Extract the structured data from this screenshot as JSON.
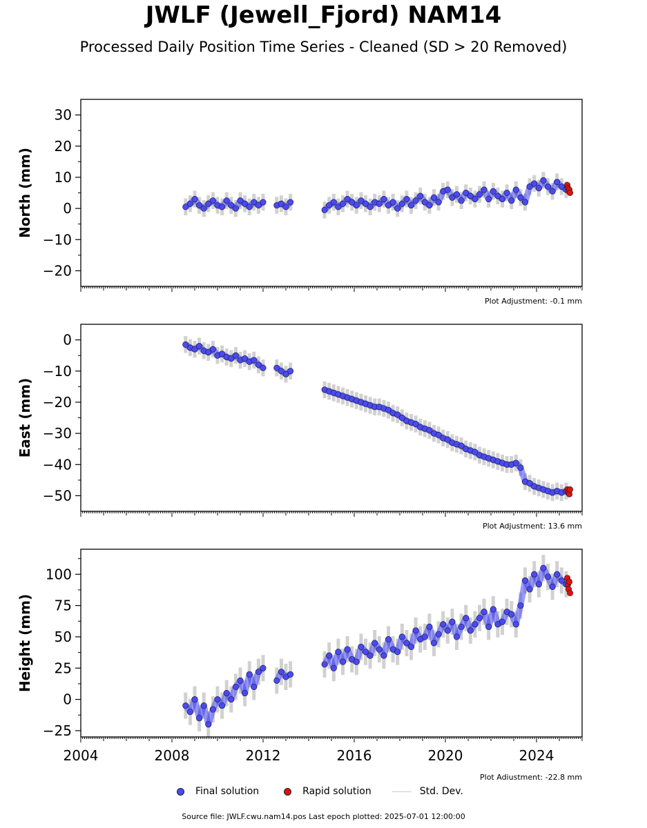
{
  "title": "JWLF (Jewell_Fjord) NAM14",
  "subtitle": "Processed Daily Position Time Series - Cleaned (SD > 20 Removed)",
  "legend": {
    "final": "Final solution",
    "rapid": "Rapid solution",
    "std": "Std. Dev."
  },
  "footer": "Source file: JWLF.cwu.nam14.pos  Last epoch plotted: 2025-07-01 12:00:00",
  "colors": {
    "final": "#4a4af5",
    "rapid": "#e01010",
    "std": "#999999",
    "edge": "#1a1a1a"
  },
  "chart_data": [
    {
      "type": "scatter",
      "ylabel": "North (mm)",
      "xlim": [
        2004,
        2026
      ],
      "ylim": [
        -25,
        35
      ],
      "yticks": [
        -20,
        -10,
        0,
        10,
        20,
        30
      ],
      "ytick_labels": [
        "−20",
        "−10",
        "0",
        "10",
        "20",
        "30"
      ],
      "xticks": [
        2004,
        2008,
        2012,
        2016,
        2020,
        2024
      ],
      "xtick_labels": [],
      "adjustment": "Plot Adjustment: -0.1 mm",
      "series": [
        {
          "role": "final",
          "x": [
            2008.6,
            2008.8,
            2009.0,
            2009.2,
            2009.4,
            2009.6,
            2009.8,
            2010.0,
            2010.2,
            2010.4,
            2010.6,
            2010.8,
            2011.0,
            2011.2,
            2011.4,
            2011.6,
            2011.8,
            2012.0,
            2012.6,
            2012.8,
            2013.0,
            2013.2,
            2014.7,
            2014.9,
            2015.1,
            2015.3,
            2015.5,
            2015.7,
            2015.9,
            2016.1,
            2016.3,
            2016.5,
            2016.7,
            2016.9,
            2017.1,
            2017.3,
            2017.5,
            2017.7,
            2017.9,
            2018.1,
            2018.3,
            2018.5,
            2018.7,
            2018.9,
            2019.1,
            2019.3,
            2019.5,
            2019.7,
            2019.9,
            2020.1,
            2020.3,
            2020.5,
            2020.7,
            2020.9,
            2021.1,
            2021.3,
            2021.5,
            2021.7,
            2021.9,
            2022.1,
            2022.3,
            2022.5,
            2022.7,
            2022.9,
            2023.1,
            2023.3,
            2023.5,
            2023.7,
            2023.9,
            2024.1,
            2024.3,
            2024.5,
            2024.7,
            2024.9,
            2025.1,
            2025.3
          ],
          "y": [
            0.5,
            1.5,
            3.0,
            1.0,
            0.0,
            1.5,
            2.5,
            1.0,
            0.5,
            2.5,
            1.0,
            0.0,
            2.5,
            1.5,
            0.5,
            2.0,
            1.0,
            2.0,
            1.0,
            1.5,
            0.5,
            2.0,
            -0.5,
            1.0,
            2.0,
            0.5,
            1.5,
            3.0,
            2.0,
            1.0,
            2.5,
            1.5,
            0.5,
            2.0,
            1.5,
            3.0,
            1.0,
            2.0,
            0.0,
            1.5,
            3.0,
            1.0,
            2.5,
            4.0,
            2.0,
            1.0,
            3.5,
            2.0,
            5.5,
            6.0,
            3.5,
            4.5,
            2.5,
            5.0,
            4.0,
            3.0,
            4.5,
            6.0,
            3.0,
            5.5,
            4.0,
            3.0,
            5.0,
            2.5,
            6.0,
            3.5,
            2.0,
            7.0,
            8.0,
            6.5,
            9.0,
            7.0,
            5.5,
            8.5,
            7.0,
            6.0
          ]
        },
        {
          "role": "rapid",
          "x": [
            2025.35,
            2025.38,
            2025.41,
            2025.44,
            2025.47
          ],
          "y": [
            7.5,
            6.5,
            5.5,
            6.0,
            5.0
          ]
        }
      ]
    },
    {
      "type": "scatter",
      "ylabel": "East (mm)",
      "xlim": [
        2004,
        2026
      ],
      "ylim": [
        -55,
        5
      ],
      "yticks": [
        -50,
        -40,
        -30,
        -20,
        -10,
        0
      ],
      "ytick_labels": [
        "−50",
        "−40",
        "−30",
        "−20",
        "−10",
        "0"
      ],
      "xticks": [
        2004,
        2008,
        2012,
        2016,
        2020,
        2024
      ],
      "xtick_labels": [],
      "adjustment": "Plot Adjustment: 13.6 mm",
      "series": [
        {
          "role": "final",
          "x": [
            2008.6,
            2008.8,
            2009.0,
            2009.2,
            2009.4,
            2009.6,
            2009.8,
            2010.0,
            2010.2,
            2010.4,
            2010.6,
            2010.8,
            2011.0,
            2011.2,
            2011.4,
            2011.6,
            2011.8,
            2012.0,
            2012.6,
            2012.8,
            2013.0,
            2013.2,
            2014.7,
            2014.9,
            2015.1,
            2015.3,
            2015.5,
            2015.7,
            2015.9,
            2016.1,
            2016.3,
            2016.5,
            2016.7,
            2016.9,
            2017.1,
            2017.3,
            2017.5,
            2017.7,
            2017.9,
            2018.1,
            2018.3,
            2018.5,
            2018.7,
            2018.9,
            2019.1,
            2019.3,
            2019.5,
            2019.7,
            2019.9,
            2020.1,
            2020.3,
            2020.5,
            2020.7,
            2020.9,
            2021.1,
            2021.3,
            2021.5,
            2021.7,
            2021.9,
            2022.1,
            2022.3,
            2022.5,
            2022.7,
            2022.9,
            2023.1,
            2023.3,
            2023.5,
            2023.7,
            2023.9,
            2024.1,
            2024.3,
            2024.5,
            2024.7,
            2024.9,
            2025.1,
            2025.3
          ],
          "y": [
            -1.5,
            -2.5,
            -3.0,
            -2.0,
            -3.5,
            -4.0,
            -3.0,
            -5.0,
            -4.5,
            -5.5,
            -6.0,
            -5.0,
            -6.5,
            -6.0,
            -7.0,
            -6.5,
            -8.0,
            -9.0,
            -9.0,
            -10.0,
            -11.0,
            -10.0,
            -16.0,
            -16.5,
            -17.0,
            -17.5,
            -18.0,
            -18.5,
            -19.0,
            -19.5,
            -20.0,
            -20.5,
            -21.0,
            -21.5,
            -21.5,
            -22.0,
            -22.5,
            -23.5,
            -24.0,
            -25.0,
            -26.0,
            -26.5,
            -27.0,
            -28.0,
            -28.5,
            -29.0,
            -30.0,
            -30.5,
            -31.5,
            -32.0,
            -33.0,
            -33.5,
            -34.0,
            -35.0,
            -35.5,
            -36.0,
            -37.0,
            -37.5,
            -38.0,
            -38.5,
            -39.0,
            -39.5,
            -40.0,
            -40.0,
            -39.5,
            -41.0,
            -45.5,
            -46.0,
            -47.0,
            -47.5,
            -48.0,
            -48.5,
            -49.0,
            -48.5,
            -49.0,
            -48.5
          ]
        },
        {
          "role": "rapid",
          "x": [
            2025.35,
            2025.38,
            2025.41,
            2025.44,
            2025.47
          ],
          "y": [
            -48.0,
            -49.0,
            -48.5,
            -49.5,
            -48.0
          ]
        }
      ]
    },
    {
      "type": "scatter",
      "ylabel": "Height (mm)",
      "xlim": [
        2004,
        2026
      ],
      "ylim": [
        -30,
        120
      ],
      "yticks": [
        -25,
        0,
        25,
        50,
        75,
        100
      ],
      "ytick_labels": [
        "−25",
        "0",
        "25",
        "50",
        "75",
        "100"
      ],
      "xticks": [
        2004,
        2008,
        2012,
        2016,
        2020,
        2024
      ],
      "xtick_labels": [
        "2004",
        "2008",
        "2012",
        "2016",
        "2020",
        "2024"
      ],
      "adjustment": "Plot Adjustment: -22.8 mm",
      "series": [
        {
          "role": "final",
          "x": [
            2008.6,
            2008.8,
            2009.0,
            2009.2,
            2009.4,
            2009.6,
            2009.8,
            2010.0,
            2010.2,
            2010.4,
            2010.6,
            2010.8,
            2011.0,
            2011.2,
            2011.4,
            2011.6,
            2011.8,
            2012.0,
            2012.6,
            2012.8,
            2013.0,
            2013.2,
            2014.7,
            2014.9,
            2015.1,
            2015.3,
            2015.5,
            2015.7,
            2015.9,
            2016.1,
            2016.3,
            2016.5,
            2016.7,
            2016.9,
            2017.1,
            2017.3,
            2017.5,
            2017.7,
            2017.9,
            2018.1,
            2018.3,
            2018.5,
            2018.7,
            2018.9,
            2019.1,
            2019.3,
            2019.5,
            2019.7,
            2019.9,
            2020.1,
            2020.3,
            2020.5,
            2020.7,
            2020.9,
            2021.1,
            2021.3,
            2021.5,
            2021.7,
            2021.9,
            2022.1,
            2022.3,
            2022.5,
            2022.7,
            2022.9,
            2023.1,
            2023.3,
            2023.5,
            2023.7,
            2023.9,
            2024.1,
            2024.3,
            2024.5,
            2024.7,
            2024.9,
            2025.1,
            2025.3
          ],
          "y": [
            -5,
            -10,
            0,
            -15,
            -5,
            -20,
            -8,
            0,
            -5,
            5,
            0,
            10,
            15,
            5,
            20,
            10,
            22,
            25,
            15,
            22,
            18,
            20,
            28,
            35,
            25,
            38,
            30,
            40,
            32,
            30,
            42,
            38,
            35,
            45,
            40,
            35,
            48,
            40,
            38,
            50,
            45,
            42,
            55,
            48,
            50,
            58,
            45,
            52,
            60,
            55,
            62,
            50,
            58,
            65,
            55,
            60,
            65,
            70,
            58,
            72,
            60,
            62,
            70,
            68,
            60,
            75,
            95,
            88,
            100,
            92,
            105,
            98,
            90,
            100,
            95,
            92
          ]
        },
        {
          "role": "rapid",
          "x": [
            2025.35,
            2025.38,
            2025.41,
            2025.44,
            2025.47
          ],
          "y": [
            97,
            92,
            88,
            94,
            85
          ]
        }
      ]
    }
  ]
}
